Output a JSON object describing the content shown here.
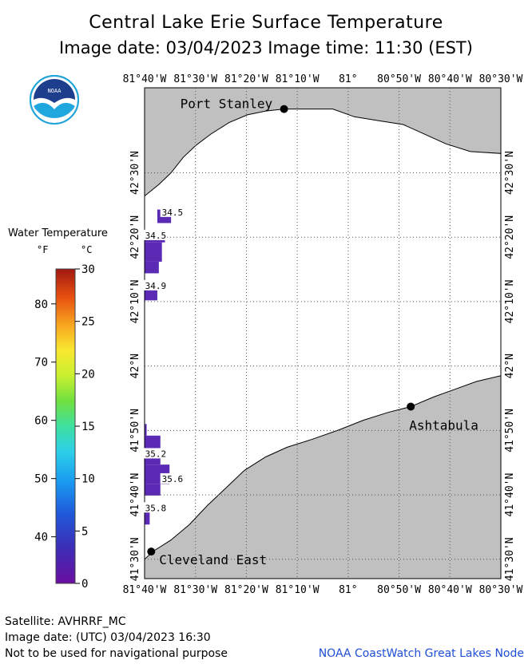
{
  "title": "Central Lake Erie Surface Temperature",
  "subtitle": "Image date: 03/04/2023    Image time: 11:30 (EST)",
  "logo_text": "NOAA",
  "legend": {
    "title": "Water Temperature",
    "unit_f": "°F",
    "unit_c": "°C",
    "f_ticks": [
      "80",
      "70",
      "60",
      "50",
      "40"
    ],
    "c_ticks": [
      "30",
      "25",
      "20",
      "15",
      "10",
      "5",
      "0"
    ]
  },
  "map": {
    "lon_labels": [
      "81°40'W",
      "81°30'W",
      "81°20'W",
      "81°10'W",
      "81°",
      "80°50'W",
      "80°40'W",
      "80°30'W"
    ],
    "lat_labels": [
      "42°30'N",
      "42°20'N",
      "42°10'N",
      "42°N",
      "41°50'N",
      "41°40'N",
      "41°30'N"
    ],
    "places": [
      {
        "name": "Port Stanley",
        "lon": -81.21,
        "lat": 42.665
      },
      {
        "name": "Ashtabula",
        "lon": -80.795,
        "lat": 41.895
      },
      {
        "name": "Cleveland East",
        "lon": -81.645,
        "lat": 41.52
      }
    ],
    "temp_labels": [
      {
        "value": "34.5",
        "lon": -81.61,
        "lat": 42.39
      },
      {
        "value": "34.5",
        "lon": -81.665,
        "lat": 42.33
      },
      {
        "value": "34.9",
        "lon": -81.665,
        "lat": 42.2
      },
      {
        "value": "35.2",
        "lon": -81.665,
        "lat": 41.765
      },
      {
        "value": "35.6",
        "lon": -81.61,
        "lat": 41.7
      },
      {
        "value": "35.8",
        "lon": -81.665,
        "lat": 41.625
      }
    ],
    "land_color": "#c0c0c0",
    "ice_color": "#5a2ab4"
  },
  "footer": {
    "satellite": "Satellite: AVHRRF_MC",
    "utc_date": "Image date: (UTC) 03/04/2023  16:30",
    "disclaimer": "Not to be used for navigational purpose",
    "credit": "NOAA CoastWatch Great Lakes Node"
  }
}
